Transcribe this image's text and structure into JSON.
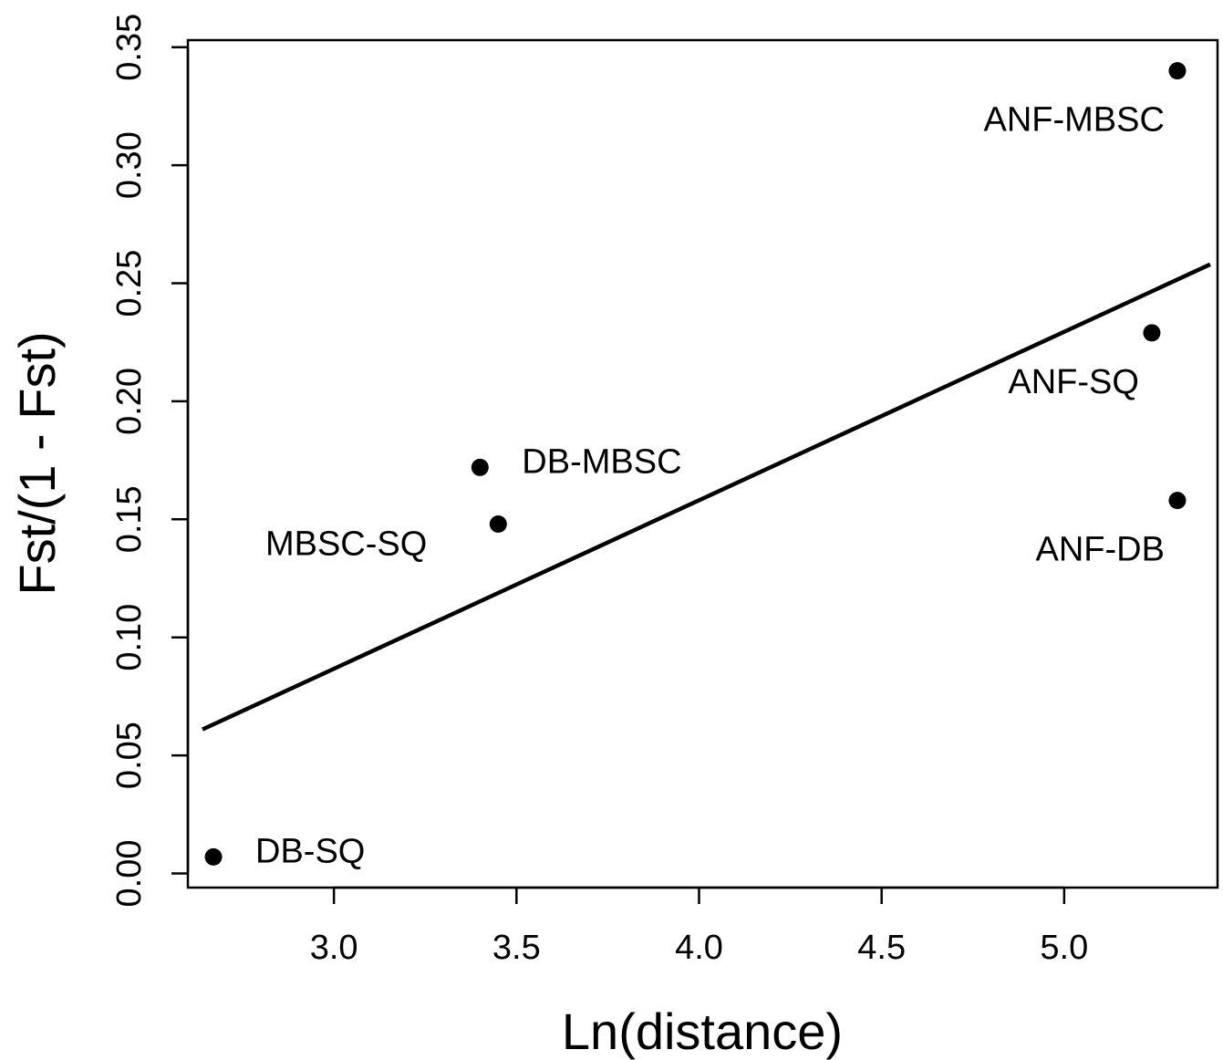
{
  "chart_data": {
    "type": "scatter",
    "title": "",
    "xlabel": "Ln(distance)",
    "ylabel": "Fst/(1 - Fst)",
    "xlim": [
      2.6,
      5.42
    ],
    "ylim": [
      -0.006,
      0.353
    ],
    "xticks": [
      3.0,
      3.5,
      4.0,
      4.5,
      5.0
    ],
    "xtick_labels": [
      "3.0",
      "3.5",
      "4.0",
      "4.5",
      "5.0"
    ],
    "yticks": [
      0.0,
      0.05,
      0.1,
      0.15,
      0.2,
      0.25,
      0.3,
      0.35
    ],
    "ytick_labels": [
      "0.00",
      "0.05",
      "0.10",
      "0.15",
      "0.20",
      "0.25",
      "0.30",
      "0.35"
    ],
    "grid": false,
    "legend": "none",
    "points": [
      {
        "label": "DB-SQ",
        "x": 2.67,
        "y": 0.007,
        "label_side": "right"
      },
      {
        "label": "DB-MBSC",
        "x": 3.4,
        "y": 0.172,
        "label_side": "right"
      },
      {
        "label": "MBSC-SQ",
        "x": 3.45,
        "y": 0.148,
        "label_side": "left"
      },
      {
        "label": "ANF-MBSC",
        "x": 5.31,
        "y": 0.34,
        "label_side": "below-left"
      },
      {
        "label": "ANF-SQ",
        "x": 5.24,
        "y": 0.229,
        "label_side": "below-left"
      },
      {
        "label": "ANF-DB",
        "x": 5.31,
        "y": 0.158,
        "label_side": "below-left"
      }
    ],
    "fit_line": {
      "x": [
        2.64,
        5.4
      ],
      "y": [
        0.061,
        0.258
      ]
    }
  }
}
